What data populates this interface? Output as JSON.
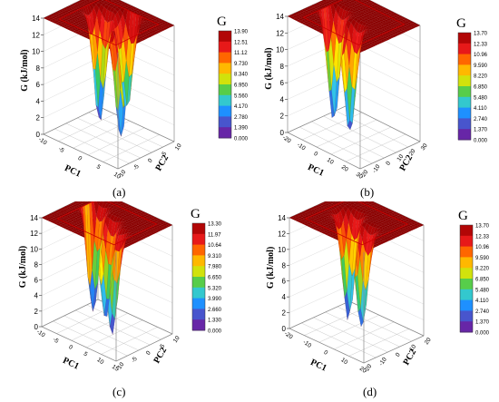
{
  "figure": {
    "panel_captions": [
      "(a)",
      "(b)",
      "(c)",
      "(d)"
    ]
  },
  "colors": {
    "colormap": [
      "#4b0082",
      "#7a3fbf",
      "#3c5bd0",
      "#1e90ff",
      "#33c7e8",
      "#33cc66",
      "#8ccf1f",
      "#ffee00",
      "#ffaa00",
      "#ff6600",
      "#ee1d1d",
      "#cc0a0a",
      "#8b0000"
    ],
    "floor_top": "#e86060",
    "surface_edge": "#cc0000"
  },
  "chart_data": [
    {
      "type": "surface3d",
      "title": "",
      "xlabel": "PC1",
      "ylabel": "PC2",
      "zlabel": "G (kJ/mol)",
      "zlim": [
        0,
        14
      ],
      "z_ticks": [
        0,
        2,
        4,
        6,
        8,
        10,
        12,
        14
      ],
      "x_ticks": [
        -10,
        -5,
        0,
        5,
        10
      ],
      "y_ticks": [
        -10,
        -5,
        0,
        5,
        10
      ],
      "legend": {
        "title": "G",
        "values": [
          "13.90",
          "12.51",
          "11.12",
          "9.730",
          "8.340",
          "6.950",
          "5.560",
          "4.170",
          "2.780",
          "1.390",
          "0.000"
        ]
      },
      "minima": [
        {
          "pc1": -4,
          "pc2": 2,
          "g": 0.5
        },
        {
          "pc1": 4,
          "pc2": -1,
          "g": 0.8
        },
        {
          "pc1": 1,
          "pc2": 5,
          "g": 2.5
        }
      ]
    },
    {
      "type": "surface3d",
      "title": "",
      "xlabel": "PC1",
      "ylabel": "PC2",
      "zlabel": "G (kJ/mol)",
      "zlim": [
        0,
        14
      ],
      "z_ticks": [
        0,
        2,
        4,
        6,
        8,
        10,
        12,
        14
      ],
      "x_ticks": [
        -20,
        -10,
        0,
        10,
        20,
        30
      ],
      "y_ticks": [
        -20,
        -10,
        0,
        10,
        20,
        30
      ],
      "legend": {
        "title": "G",
        "values": [
          "13.70",
          "12.33",
          "10.96",
          "9.590",
          "8.220",
          "6.850",
          "5.480",
          "4.110",
          "2.740",
          "1.370",
          "0.000"
        ]
      },
      "minima": [
        {
          "pc1": -8,
          "pc2": 4,
          "g": 0.6
        },
        {
          "pc1": 8,
          "pc2": -2,
          "g": 1.0
        }
      ]
    },
    {
      "type": "surface3d",
      "title": "",
      "xlabel": "PC1",
      "ylabel": "PC2",
      "zlabel": "G (kJ/mol)",
      "zlim": [
        0,
        14
      ],
      "z_ticks": [
        0,
        2,
        4,
        6,
        8,
        10,
        12,
        14
      ],
      "x_ticks": [
        -10,
        -5,
        0,
        5,
        10,
        15
      ],
      "y_ticks": [
        -10,
        -5,
        0,
        5,
        10
      ],
      "legend": {
        "title": "G",
        "values": [
          "13.30",
          "11.97",
          "10.64",
          "9.310",
          "7.980",
          "6.650",
          "5.320",
          "3.990",
          "2.660",
          "1.330",
          "0.000"
        ]
      },
      "minima": [
        {
          "pc1": -5,
          "pc2": 3,
          "g": 0.4
        },
        {
          "pc1": 2,
          "pc2": 0,
          "g": 1.2
        },
        {
          "pc1": 7,
          "pc2": -3,
          "g": 0.6
        }
      ]
    },
    {
      "type": "surface3d",
      "title": "",
      "xlabel": "PC1",
      "ylabel": "PC2",
      "zlabel": "G (kJ/mol)",
      "zlim": [
        0,
        14
      ],
      "z_ticks": [
        0,
        2,
        4,
        6,
        8,
        10,
        12,
        14
      ],
      "x_ticks": [
        -20,
        -10,
        0,
        10,
        20
      ],
      "y_ticks": [
        -20,
        -10,
        0,
        10,
        20
      ],
      "legend": {
        "title": "G",
        "values": [
          "13.70",
          "12.33",
          "10.96",
          "9.590",
          "8.220",
          "6.850",
          "5.480",
          "4.110",
          "2.740",
          "1.370",
          "0.000"
        ]
      },
      "minima": [
        {
          "pc1": -6,
          "pc2": 2,
          "g": 0.5
        },
        {
          "pc1": 6,
          "pc2": -4,
          "g": 1.4
        }
      ]
    }
  ]
}
